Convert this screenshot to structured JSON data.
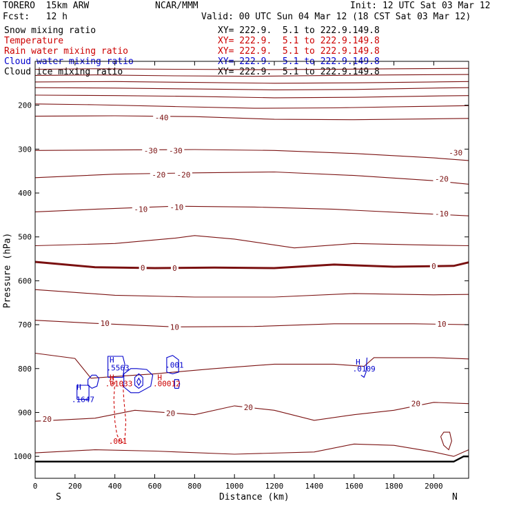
{
  "header": {
    "model": "TORERO  15km ARW",
    "org": "NCAR/MMM",
    "init": "Init: 12 UTC Sat 03 Mar 12",
    "fcst": "Fcst:   12 h",
    "valid": "Valid: 00 UTC Sun 04 Mar 12 (18 CST Sat 03 Mar 12)"
  },
  "fields": [
    {
      "name": "Snow mixing ratio",
      "xy": "XY= 222.9.  5.1 to 222.9.149.8",
      "color": "#000000"
    },
    {
      "name": "Temperature",
      "xy": "XY= 222.9.  5.1 to 222.9.149.8",
      "color": "#cc0000"
    },
    {
      "name": "Rain water mixing ratio",
      "xy": "XY= 222.9.  5.1 to 222.9.149.8",
      "color": "#cc0000"
    },
    {
      "name": "Cloud water mixing ratio",
      "xy": "XY= 222.9.  5.1 to 222.9.149.8",
      "color": "#0000cc"
    },
    {
      "name": "Cloud ice mixing ratio",
      "xy": "XY= 222.9.  5.1 to 222.9.149.8",
      "color": "#000000"
    }
  ],
  "chart_data": {
    "type": "line",
    "xlabel": "Distance (km)",
    "ylabel": "Pressure (hPa)",
    "xlim": [
      0,
      2175
    ],
    "ylim": [
      1050,
      100
    ],
    "x_ticks": [
      0,
      200,
      400,
      600,
      800,
      1000,
      1200,
      1400,
      1600,
      1800,
      2000
    ],
    "y_ticks": [
      200,
      300,
      400,
      500,
      600,
      700,
      800,
      900,
      1000
    ],
    "x_end_labels": {
      "left": "S",
      "right": "N"
    },
    "temperature_color": "#7a1010",
    "cloud_color": "#0000cc",
    "rain_color": "#cc0000",
    "isotherms": [
      {
        "label": "",
        "x": [
          0,
          300,
          700,
          1100,
          1500,
          1800,
          2175
        ],
        "p": [
          118,
          117,
          118,
          119,
          118,
          117,
          116
        ]
      },
      {
        "label": "",
        "x": [
          0,
          300,
          700,
          1100,
          1500,
          1800,
          2175
        ],
        "p": [
          132,
          131,
          133,
          134,
          132,
          131,
          130
        ]
      },
      {
        "label": "",
        "x": [
          0,
          400,
          800,
          1200,
          1600,
          2000,
          2175
        ],
        "p": [
          147,
          146,
          148,
          150,
          149,
          147,
          146
        ]
      },
      {
        "label": "",
        "x": [
          0,
          400,
          800,
          1200,
          1600,
          2000,
          2175
        ],
        "p": [
          160,
          161,
          163,
          165,
          164,
          161,
          160
        ]
      },
      {
        "label": "",
        "x": [
          0,
          400,
          800,
          1200,
          1600,
          2000,
          2175
        ],
        "p": [
          177,
          178,
          180,
          183,
          182,
          179,
          178
        ]
      },
      {
        "label": "",
        "x": [
          0,
          300,
          700,
          1100,
          1500,
          1900,
          2175
        ],
        "p": [
          197,
          199,
          203,
          207,
          206,
          203,
          201
        ]
      },
      {
        "label": "-40",
        "x": [
          0,
          400,
          800,
          1200,
          1600,
          2000,
          2175
        ],
        "p": [
          225,
          224,
          226,
          232,
          233,
          231,
          230
        ]
      },
      {
        "label": "-30",
        "x": [
          0,
          400,
          800,
          1200,
          1600,
          2000,
          2175
        ],
        "p": [
          303,
          302,
          301,
          303,
          310,
          320,
          326
        ]
      },
      {
        "label": "-20",
        "x": [
          0,
          400,
          800,
          1200,
          1600,
          2000,
          2175
        ],
        "p": [
          365,
          357,
          354,
          352,
          360,
          372,
          380
        ]
      },
      {
        "label": "-10",
        "x": [
          0,
          300,
          700,
          1100,
          1500,
          1900,
          2175
        ],
        "p": [
          443,
          437,
          430,
          432,
          437,
          446,
          452
        ]
      },
      {
        "label": "",
        "x": [
          0,
          400,
          700,
          800,
          1000,
          1300,
          1600,
          1900,
          2175
        ],
        "p": [
          520,
          515,
          503,
          497,
          505,
          525,
          515,
          518,
          520
        ]
      },
      {
        "label": "0",
        "x": [
          0,
          300,
          600,
          900,
          1200,
          1500,
          1800,
          2100,
          2175
        ],
        "p": [
          557,
          569,
          571,
          570,
          571,
          563,
          568,
          566,
          558
        ],
        "bold": true
      },
      {
        "label": "",
        "x": [
          0,
          400,
          800,
          1200,
          1600,
          2000,
          2175
        ],
        "p": [
          620,
          633,
          637,
          637,
          629,
          632,
          631
        ]
      },
      {
        "label": "10",
        "x": [
          0,
          300,
          700,
          1100,
          1500,
          1900,
          2175
        ],
        "p": [
          690,
          697,
          705,
          704,
          698,
          698,
          700
        ]
      },
      {
        "label": "",
        "x": [
          0,
          200,
          280,
          400,
          600,
          900,
          1200,
          1500,
          1650,
          1700,
          2000,
          2175
        ],
        "p": [
          765,
          777,
          822,
          818,
          812,
          800,
          790,
          790,
          795,
          775,
          775,
          778
        ]
      },
      {
        "label": "20",
        "x": [
          0,
          300,
          500,
          800,
          1000,
          1200,
          1400,
          1600,
          1800,
          2000,
          2175
        ],
        "p": [
          920,
          913,
          895,
          905,
          885,
          895,
          918,
          905,
          895,
          877,
          880
        ]
      },
      {
        "label": "",
        "x": [
          0,
          300,
          600,
          1000,
          1400,
          1600,
          1800,
          2000,
          2100,
          2175
        ],
        "p": [
          992,
          985,
          988,
          995,
          990,
          972,
          975,
          990,
          1000,
          985
        ]
      }
    ],
    "surface": {
      "x": [
        0,
        500,
        1000,
        1500,
        2000,
        2100,
        2150,
        2175
      ],
      "p": [
        1012,
        1012,
        1012,
        1012,
        1012,
        1012,
        1000,
        1000
      ]
    },
    "contour_labels": [
      {
        "text": "-40",
        "x": 635,
        "p": 228,
        "series": "T"
      },
      {
        "text": "-30",
        "x": 580,
        "p": 303,
        "series": "T"
      },
      {
        "text": "-30",
        "x": 705,
        "p": 303,
        "series": "T"
      },
      {
        "text": "-30",
        "x": 2110,
        "p": 308,
        "series": "T"
      },
      {
        "text": "-20",
        "x": 620,
        "p": 358,
        "series": "T"
      },
      {
        "text": "-20",
        "x": 745,
        "p": 358,
        "series": "T"
      },
      {
        "text": "-20",
        "x": 2040,
        "p": 368,
        "series": "T"
      },
      {
        "text": "-10",
        "x": 530,
        "p": 437,
        "series": "T"
      },
      {
        "text": "-10",
        "x": 710,
        "p": 432,
        "series": "T"
      },
      {
        "text": "-10",
        "x": 2040,
        "p": 447,
        "series": "T"
      },
      {
        "text": "0",
        "x": 540,
        "p": 570,
        "series": "T"
      },
      {
        "text": "0",
        "x": 700,
        "p": 571,
        "series": "T"
      },
      {
        "text": "0",
        "x": 2000,
        "p": 566,
        "series": "T"
      },
      {
        "text": "10",
        "x": 350,
        "p": 697,
        "series": "T"
      },
      {
        "text": "10",
        "x": 700,
        "p": 705,
        "series": "T"
      },
      {
        "text": "10",
        "x": 2040,
        "p": 698,
        "series": "T"
      },
      {
        "text": "20",
        "x": 60,
        "p": 915,
        "series": "T"
      },
      {
        "text": "20",
        "x": 680,
        "p": 902,
        "series": "T"
      },
      {
        "text": "20",
        "x": 1070,
        "p": 888,
        "series": "T"
      },
      {
        "text": "20",
        "x": 1910,
        "p": 880,
        "series": "T"
      },
      {
        "text": "H",
        "x": 220,
        "p": 842,
        "series": "Qc"
      },
      {
        "text": ".1647",
        "x": 240,
        "p": 870,
        "series": "Qc"
      },
      {
        "text": "H",
        "x": 385,
        "p": 780,
        "series": "Qc"
      },
      {
        "text": ".5563",
        "x": 415,
        "p": 798,
        "series": "Qc"
      },
      {
        "text": ".001",
        "x": 700,
        "p": 792,
        "series": "Qc"
      },
      {
        "text": "H",
        "x": 1620,
        "p": 785,
        "series": "Qc"
      },
      {
        "text": ".0109",
        "x": 1650,
        "p": 800,
        "series": "Qc"
      },
      {
        "text": "H",
        "x": 385,
        "p": 820,
        "series": "Qr"
      },
      {
        "text": ".01033",
        "x": 420,
        "p": 834,
        "series": "Qr"
      },
      {
        "text": "H",
        "x": 625,
        "p": 820,
        "series": "Qr"
      },
      {
        "text": ".00012",
        "x": 660,
        "p": 834,
        "series": "Qr"
      },
      {
        "text": ".001",
        "x": 415,
        "p": 965,
        "series": "Qr"
      }
    ],
    "cloud_water_contours": [
      {
        "x": [
          265,
          265,
          285,
          305,
          320,
          310,
          285,
          265
        ],
        "p": [
          838,
          825,
          815,
          815,
          822,
          840,
          845,
          838
        ]
      },
      {
        "x": [
          210,
          210,
          270,
          270,
          210
        ],
        "p": [
          870,
          838,
          838,
          870,
          870
        ]
      },
      {
        "x": [
          365,
          365,
          440,
          450,
          440,
          365
        ],
        "p": [
          820,
          772,
          772,
          790,
          820,
          820
        ]
      },
      {
        "x": [
          445,
          445,
          480,
          510,
          560,
          590,
          580,
          520,
          480,
          445
        ],
        "p": [
          842,
          812,
          800,
          800,
          802,
          815,
          840,
          855,
          855,
          842
        ]
      },
      {
        "x": [
          500,
          500,
          520,
          540,
          540,
          520,
          500
        ],
        "p": [
          838,
          820,
          812,
          820,
          838,
          845,
          838
        ]
      },
      {
        "x": [
          510,
          520,
          530,
          520,
          510
        ],
        "p": [
          830,
          822,
          830,
          838,
          830
        ]
      },
      {
        "x": [
          660,
          660,
          690,
          720,
          720,
          690,
          660
        ],
        "p": [
          808,
          775,
          770,
          780,
          808,
          812,
          808
        ]
      },
      {
        "x": [
          700,
          700,
          720,
          725,
          720,
          700
        ],
        "p": [
          845,
          825,
          825,
          835,
          845,
          845
        ]
      },
      {
        "x": [
          1635,
          1650,
          1660,
          1665
        ],
        "p": [
          815,
          820,
          808,
          775
        ]
      }
    ],
    "rain_contours": [
      {
        "x": [
          400,
          395,
          400,
          410,
          430,
          450,
          455,
          445,
          440
        ],
        "p": [
          830,
          870,
          920,
          950,
          970,
          965,
          920,
          870,
          830
        ]
      },
      {
        "x": [
          375,
          385,
          395,
          385,
          375
        ],
        "p": [
          828,
          820,
          828,
          836,
          828
        ]
      }
    ],
    "ground_loop": {
      "x": [
        2035,
        2050,
        2080,
        2090,
        2075,
        2050,
        2035
      ],
      "p": [
        955,
        945,
        945,
        965,
        985,
        975,
        955
      ]
    }
  }
}
